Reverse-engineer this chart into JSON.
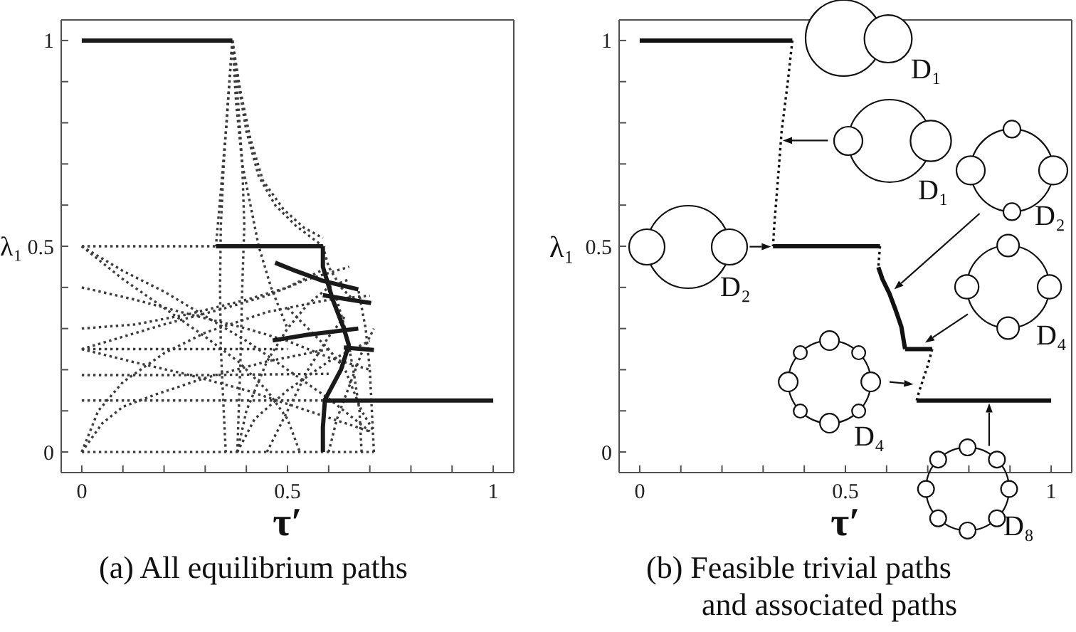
{
  "chart_data": [
    {
      "type": "line",
      "xlabel": "τ′",
      "ylabel": "λ₁",
      "xlim": [
        -0.05,
        1.05
      ],
      "ylim": [
        -0.05,
        1.05
      ],
      "xticks": [
        0,
        {
          "value": 0.1,
          "label": null
        },
        {
          "value": 0.2,
          "label": null
        },
        {
          "value": 0.3,
          "label": null
        },
        {
          "value": 0.4,
          "label": null
        },
        0.5,
        {
          "value": 0.6,
          "label": null
        },
        {
          "value": 0.7,
          "label": null
        },
        {
          "value": 0.8,
          "label": null
        },
        {
          "value": 0.9,
          "label": null
        },
        1
      ],
      "yticks": [
        0,
        {
          "value": 0.1,
          "label": null
        },
        {
          "value": 0.2,
          "label": null
        },
        {
          "value": 0.3,
          "label": null
        },
        {
          "value": 0.4,
          "label": null
        },
        0.5,
        {
          "value": 0.6,
          "label": null
        },
        {
          "value": 0.7,
          "label": null
        },
        {
          "value": 0.8,
          "label": null
        },
        {
          "value": 0.9,
          "label": null
        },
        1
      ],
      "series": [
        {
          "color": "#3c3c3c",
          "line_style": "dotted",
          "x": [
            0,
            0.326
          ],
          "values": [
            0.5,
            0.5
          ]
        },
        {
          "color": "#3c3c3c",
          "line_style": "dotted",
          "x": [
            0.366,
            0.355,
            0.345,
            0.338,
            0.336,
            0.338,
            0.345,
            0.35
          ],
          "values": [
            1,
            0.85,
            0.7,
            0.55,
            0.4,
            0.25,
            0.1,
            0
          ]
        },
        {
          "color": "#3c3c3c",
          "line_style": "dotted",
          "x": [
            0.366,
            0.352,
            0.335,
            0.326
          ],
          "values": [
            1,
            0.8,
            0.6,
            0.5
          ]
        },
        {
          "color": "#3c3c3c",
          "line_style": "dotted",
          "x": [
            0.366,
            0.38,
            0.39,
            0.395,
            0.39,
            0.385,
            0.378
          ],
          "values": [
            1,
            0.85,
            0.7,
            0.55,
            0.4,
            0.2,
            0
          ]
        },
        {
          "color": "#3c3c3c",
          "line_style": "dotted",
          "x": [
            0.366,
            0.38,
            0.4,
            0.43,
            0.47,
            0.52,
            0.586
          ],
          "values": [
            1,
            0.9,
            0.78,
            0.67,
            0.6,
            0.55,
            0.5
          ]
        },
        {
          "color": "#3c3c3c",
          "line_style": "dotted",
          "x": [
            0.366,
            0.385,
            0.41,
            0.44,
            0.49,
            0.54,
            0.586
          ],
          "values": [
            1,
            0.88,
            0.76,
            0.66,
            0.59,
            0.545,
            0.52
          ]
        },
        {
          "color": "#3c3c3c",
          "line_style": "dotted",
          "x": [
            0.366,
            0.375,
            0.39,
            0.41,
            0.43,
            0.46,
            0.5
          ],
          "values": [
            1,
            0.85,
            0.7,
            0.6,
            0.5,
            0.4,
            0.3
          ]
        },
        {
          "color": "#3c3c3c",
          "line_style": "dotted",
          "x": [
            0,
            0.1,
            0.2,
            0.3,
            0.4,
            0.5,
            0.6,
            0.7
          ],
          "values": [
            0.5,
            0.44,
            0.39,
            0.33,
            0.27,
            0.2,
            0.13,
            0.05
          ]
        },
        {
          "color": "#3c3c3c",
          "line_style": "dotted",
          "x": [
            0,
            0.1,
            0.2,
            0.3,
            0.38,
            0.45,
            0.5,
            0.53
          ],
          "values": [
            0.5,
            0.42,
            0.35,
            0.28,
            0.22,
            0.15,
            0.08,
            0
          ]
        },
        {
          "color": "#3c3c3c",
          "line_style": "dotted",
          "x": [
            0,
            0.13,
            0.26,
            0.4,
            0.5,
            0.6,
            0.7
          ],
          "values": [
            0.4,
            0.37,
            0.335,
            0.3,
            0.27,
            0.23,
            0.2
          ]
        },
        {
          "color": "#3c3c3c",
          "line_style": "dotted",
          "x": [
            0,
            0.13,
            0.26,
            0.4,
            0.5,
            0.58
          ],
          "values": [
            0.3,
            0.31,
            0.335,
            0.37,
            0.4,
            0.44
          ]
        },
        {
          "color": "#3c3c3c",
          "line_style": "dotted",
          "x": [
            0,
            0.5
          ],
          "values": [
            0.25,
            0.25
          ]
        },
        {
          "color": "#3c3c3c",
          "line_style": "dotted",
          "x": [
            0,
            0.1,
            0.2,
            0.35,
            0.45,
            0.55,
            0.65
          ],
          "values": [
            0.25,
            0.28,
            0.31,
            0.35,
            0.38,
            0.42,
            0.45
          ]
        },
        {
          "color": "#3c3c3c",
          "line_style": "dotted",
          "x": [
            0,
            0.12,
            0.25,
            0.4,
            0.55,
            0.7
          ],
          "values": [
            0.25,
            0.22,
            0.19,
            0.15,
            0.1,
            0.05
          ]
        },
        {
          "color": "#3c3c3c",
          "line_style": "dotted",
          "x": [
            0,
            0.3,
            0.6
          ],
          "values": [
            0.187,
            0.187,
            0.19
          ]
        },
        {
          "color": "#3c3c3c",
          "line_style": "dotted",
          "x": [
            0,
            0.586
          ],
          "values": [
            0.125,
            0.125
          ]
        },
        {
          "color": "#3c3c3c",
          "line_style": "dotted",
          "x": [
            0,
            0.05,
            0.1,
            0.18,
            0.3,
            0.45,
            0.6
          ],
          "values": [
            0,
            0.07,
            0.11,
            0.14,
            0.18,
            0.22,
            0.25
          ]
        },
        {
          "color": "#3c3c3c",
          "line_style": "dotted",
          "x": [
            0,
            0.04,
            0.1,
            0.2,
            0.3,
            0.45,
            0.6,
            0.7
          ],
          "values": [
            0,
            0.1,
            0.17,
            0.24,
            0.29,
            0.34,
            0.37,
            0.38
          ]
        },
        {
          "color": "#3c3c3c",
          "line_style": "dotted",
          "x": [
            0,
            0.71
          ],
          "values": [
            0,
            0
          ]
        },
        {
          "color": "#3c3c3c",
          "line_style": "dotted",
          "x": [
            0.378,
            0.4,
            0.45,
            0.5,
            0.55,
            0.6,
            0.65
          ],
          "values": [
            0,
            0.1,
            0.22,
            0.3,
            0.36,
            0.4,
            0.42
          ]
        },
        {
          "color": "#3c3c3c",
          "line_style": "dotted",
          "x": [
            0.378,
            0.42,
            0.5,
            0.6,
            0.7
          ],
          "values": [
            0,
            0.08,
            0.15,
            0.22,
            0.27
          ]
        },
        {
          "color": "#3c3c3c",
          "line_style": "dotted",
          "x": [
            0.71,
            0.705,
            0.7,
            0.69,
            0.672
          ],
          "values": [
            0,
            0.1,
            0.2,
            0.3,
            0.395
          ]
        },
        {
          "color": "#3c3c3c",
          "line_style": "dotted",
          "x": [
            0.68,
            0.675,
            0.66,
            0.64,
            0.62
          ],
          "values": [
            0,
            0.1,
            0.2,
            0.3,
            0.37
          ]
        },
        {
          "color": "#3c3c3c",
          "line_style": "dotted",
          "x": [
            0.6,
            0.62,
            0.65,
            0.68,
            0.71
          ],
          "values": [
            0,
            0.08,
            0.16,
            0.24,
            0.3
          ]
        },
        {
          "color": "#3c3c3c",
          "line_style": "dotted",
          "x": [
            0.45,
            0.5,
            0.55,
            0.6,
            0.64
          ],
          "values": [
            0,
            0.1,
            0.2,
            0.28,
            0.33
          ]
        },
        {
          "color": "#3c3c3c",
          "line_style": "dotted",
          "x": [
            0.586,
            0.6,
            0.63,
            0.66,
            0.703
          ],
          "values": [
            0.5,
            0.45,
            0.4,
            0.37,
            0.362
          ]
        },
        {
          "color": "#3c3c3c",
          "line_style": "dotted",
          "x": [
            0.5,
            0.55,
            0.6,
            0.64,
            0.66,
            0.68,
            0.71
          ],
          "values": [
            0.35,
            0.3,
            0.25,
            0.2,
            0.15,
            0.1,
            0.05
          ]
        },
        {
          "color": "#1a1a1a",
          "line_style": "solid",
          "x": [
            0,
            0.366
          ],
          "values": [
            1,
            1
          ]
        },
        {
          "color": "#1a1a1a",
          "line_style": "solid",
          "x": [
            0.326,
            0.586
          ],
          "values": [
            0.5,
            0.5
          ]
        },
        {
          "color": "#1a1a1a",
          "line_style": "solid",
          "x": [
            0.586,
            0.586,
            0.61,
            0.637,
            0.649,
            0.63,
            0.591,
            0.586,
            0.586
          ],
          "values": [
            0.5,
            0.45,
            0.37,
            0.3,
            0.26,
            0.2,
            0.127,
            0.06,
            0
          ]
        },
        {
          "color": "#1a1a1a",
          "line_style": "solid",
          "x": [
            0.47,
            0.52,
            0.586,
            0.672
          ],
          "values": [
            0.46,
            0.44,
            0.416,
            0.395
          ]
        },
        {
          "color": "#1a1a1a",
          "line_style": "solid",
          "x": [
            0.586,
            0.64,
            0.703
          ],
          "values": [
            0.381,
            0.372,
            0.362
          ]
        },
        {
          "color": "#1a1a1a",
          "line_style": "solid",
          "x": [
            0.464,
            0.55,
            0.672
          ],
          "values": [
            0.271,
            0.285,
            0.3
          ]
        },
        {
          "color": "#1a1a1a",
          "line_style": "solid",
          "x": [
            0.637,
            0.71
          ],
          "values": [
            0.254,
            0.248
          ]
        },
        {
          "color": "#1a1a1a",
          "line_style": "solid",
          "x": [
            0.586,
            1
          ],
          "values": [
            0.125,
            0.125
          ]
        }
      ],
      "annotations": [
        "(a) All equilibrium paths"
      ]
    },
    {
      "type": "line",
      "xlabel": "τ′",
      "ylabel": "λ₁",
      "xlim": [
        -0.05,
        1.05
      ],
      "ylim": [
        -0.05,
        1.05
      ],
      "xticks": [
        0,
        {
          "value": 0.1,
          "label": null
        },
        {
          "value": 0.2,
          "label": null
        },
        {
          "value": 0.3,
          "label": null
        },
        {
          "value": 0.4,
          "label": null
        },
        0.5,
        {
          "value": 0.6,
          "label": null
        },
        {
          "value": 0.7,
          "label": null
        },
        {
          "value": 0.8,
          "label": null
        },
        {
          "value": 0.9,
          "label": null
        },
        1
      ],
      "yticks": [
        0,
        {
          "value": 0.1,
          "label": null
        },
        {
          "value": 0.2,
          "label": null
        },
        {
          "value": 0.3,
          "label": null
        },
        {
          "value": 0.4,
          "label": null
        },
        0.5,
        {
          "value": 0.6,
          "label": null
        },
        {
          "value": 0.7,
          "label": null
        },
        {
          "value": 0.8,
          "label": null
        },
        {
          "value": 0.9,
          "label": null
        },
        1
      ],
      "series": [
        {
          "color": "#111111",
          "line_style": "solid",
          "x": [
            0,
            0.371
          ],
          "values": [
            1,
            1
          ]
        },
        {
          "color": "#111111",
          "line_style": "dotted",
          "x": [
            0.371,
            0.36,
            0.345,
            0.335,
            0.327,
            0.324
          ],
          "values": [
            1,
            0.9,
            0.78,
            0.65,
            0.55,
            0.5
          ]
        },
        {
          "color": "#111111",
          "line_style": "solid",
          "x": [
            0.324,
            0.584
          ],
          "values": [
            0.5,
            0.5
          ]
        },
        {
          "color": "#111111",
          "line_style": "dotted",
          "x": [
            0.584,
            0.58
          ],
          "values": [
            0.5,
            0.449
          ]
        },
        {
          "color": "#111111",
          "line_style": "solid",
          "x": [
            0.58,
            0.59,
            0.607,
            0.622,
            0.636,
            0.645
          ],
          "values": [
            0.449,
            0.42,
            0.385,
            0.345,
            0.304,
            0.25
          ]
        },
        {
          "color": "#111111",
          "line_style": "solid",
          "x": [
            0.645,
            0.711
          ],
          "values": [
            0.25,
            0.25
          ]
        },
        {
          "color": "#111111",
          "line_style": "dotted",
          "x": [
            0.711,
            0.7,
            0.69,
            0.68,
            0.673
          ],
          "values": [
            0.25,
            0.21,
            0.18,
            0.15,
            0.125
          ]
        },
        {
          "color": "#111111",
          "line_style": "solid",
          "x": [
            0.673,
            1
          ],
          "values": [
            0.125,
            0.125
          ]
        }
      ],
      "annotations": [
        "D₁",
        "D₁",
        "D₂",
        "D₂",
        "D₄",
        "D₄",
        "D₈",
        "(b) Feasible trivial paths and associated paths"
      ]
    }
  ]
}
